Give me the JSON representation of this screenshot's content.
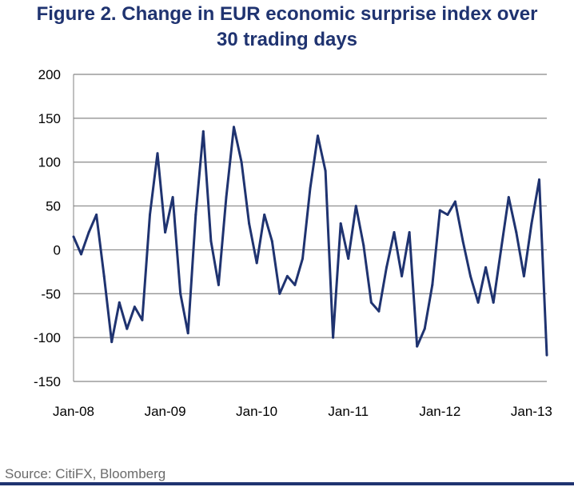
{
  "chart_data": {
    "type": "line",
    "title_line1": "Figure 2. Change in EUR economic surprise index over",
    "title_line2": "30 trading days",
    "xlabel": "",
    "ylabel": "",
    "ylim": [
      -150,
      200
    ],
    "y_ticks": [
      "200",
      "150",
      "100",
      "50",
      "0",
      "-50",
      "-100",
      "-150"
    ],
    "x_ticks": [
      "Jan-08",
      "Jan-09",
      "Jan-10",
      "Jan-11",
      "Jan-12",
      "Jan-13"
    ],
    "xlim": [
      "2008-01",
      "2013-03"
    ],
    "grid": "horizontal",
    "line_color": "#1f3370",
    "series": [
      {
        "x": [
          "2008-01",
          "2008-02",
          "2008-03",
          "2008-04",
          "2008-05",
          "2008-06",
          "2008-07",
          "2008-08",
          "2008-09",
          "2008-10",
          "2008-11",
          "2008-12",
          "2009-01",
          "2009-02",
          "2009-03",
          "2009-04",
          "2009-05",
          "2009-06",
          "2009-07",
          "2009-08",
          "2009-09",
          "2009-10",
          "2009-11",
          "2009-12",
          "2010-01",
          "2010-02",
          "2010-03",
          "2010-04",
          "2010-05",
          "2010-06",
          "2010-07",
          "2010-08",
          "2010-09",
          "2010-10",
          "2010-11",
          "2010-12",
          "2011-01",
          "2011-02",
          "2011-03",
          "2011-04",
          "2011-05",
          "2011-06",
          "2011-07",
          "2011-08",
          "2011-09",
          "2011-10",
          "2011-11",
          "2011-12",
          "2012-01",
          "2012-02",
          "2012-03",
          "2012-04",
          "2012-05",
          "2012-06",
          "2012-07",
          "2012-08",
          "2012-09",
          "2012-10",
          "2012-11",
          "2012-12",
          "2013-01",
          "2013-02",
          "2013-03"
        ],
        "values": [
          15,
          -5,
          20,
          40,
          -30,
          -105,
          -60,
          -90,
          -65,
          -80,
          40,
          110,
          20,
          60,
          -50,
          -95,
          40,
          135,
          10,
          -40,
          60,
          140,
          100,
          30,
          -15,
          40,
          10,
          -50,
          -30,
          -40,
          -10,
          70,
          130,
          90,
          -100,
          30,
          -10,
          50,
          5,
          -60,
          -70,
          -20,
          20,
          -30,
          20,
          -110,
          -90,
          -40,
          45,
          40,
          55,
          10,
          -30,
          -60,
          -20,
          -60,
          0,
          60,
          20,
          -30,
          30,
          80,
          -120
        ]
      }
    ]
  },
  "source": "Source: CitiFX, Bloomberg"
}
